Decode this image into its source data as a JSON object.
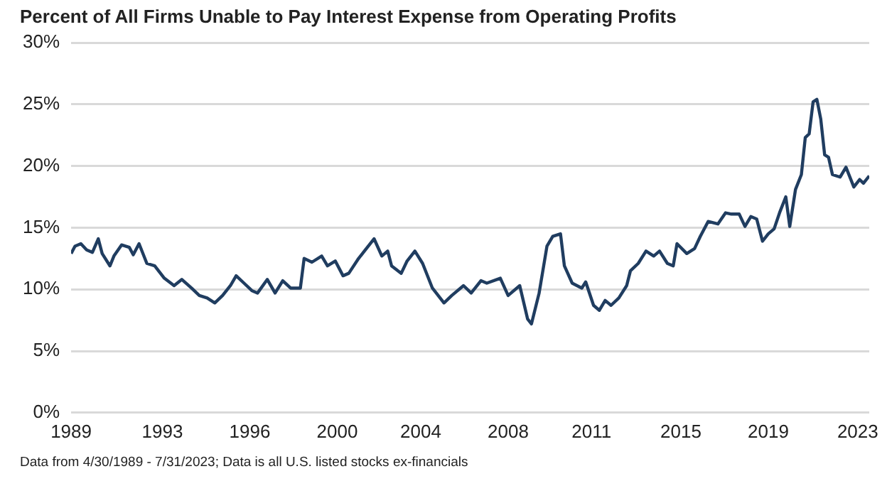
{
  "chart_data": {
    "type": "line",
    "title": "Percent of All Firms Unable to Pay Interest Expense from Operating Profits",
    "annotations": [
      "Data from 4/30/1989 - 7/31/2023; Data is all U.S. listed stocks ex-financials"
    ],
    "x": [
      "1989-04",
      "1989-06",
      "1989-09",
      "1989-12",
      "1990-03",
      "1990-06",
      "1990-08",
      "1990-12",
      "1991-02",
      "1991-06",
      "1991-10",
      "1991-12",
      "1992-03",
      "1992-07",
      "1992-11",
      "1993-04",
      "1993-09",
      "1994-01",
      "1994-06",
      "1994-10",
      "1995-02",
      "1995-06",
      "1995-10",
      "1996-02",
      "1996-05",
      "1996-09",
      "1997-01",
      "1997-04",
      "1997-09",
      "1998-01",
      "1998-05",
      "1998-09",
      "1999-02",
      "1999-04",
      "1999-08",
      "2000-01",
      "2000-04",
      "2000-08",
      "2000-12",
      "2001-03",
      "2001-08",
      "2001-12",
      "2002-04",
      "2002-08",
      "2002-11",
      "2003-01",
      "2003-06",
      "2003-09",
      "2004-01",
      "2004-05",
      "2004-10",
      "2005-04",
      "2005-08",
      "2006-02",
      "2006-06",
      "2006-11",
      "2007-02",
      "2007-09",
      "2008-01",
      "2008-07",
      "2008-11",
      "2009-01",
      "2009-05",
      "2009-09",
      "2009-12",
      "2010-04",
      "2010-06",
      "2010-10",
      "2011-03",
      "2011-05",
      "2011-09",
      "2011-12",
      "2012-03",
      "2012-06",
      "2012-10",
      "2013-02",
      "2013-04",
      "2013-08",
      "2013-12",
      "2014-04",
      "2014-07",
      "2014-11",
      "2015-02",
      "2015-04",
      "2015-09",
      "2016-01",
      "2016-04",
      "2016-08",
      "2017-01",
      "2017-05",
      "2017-08",
      "2017-12",
      "2018-03",
      "2018-06",
      "2018-09",
      "2018-12",
      "2019-03",
      "2019-06",
      "2019-09",
      "2019-12",
      "2020-02",
      "2020-05",
      "2020-08",
      "2020-10",
      "2020-12",
      "2021-02",
      "2021-04",
      "2021-06",
      "2021-08",
      "2021-10",
      "2021-12",
      "2022-04",
      "2022-07",
      "2022-11",
      "2023-02",
      "2023-04",
      "2023-07"
    ],
    "series": [
      {
        "color": "#203d60",
        "values": [
          12.9,
          13.5,
          13.7,
          13.2,
          13.0,
          14.1,
          12.9,
          11.9,
          12.7,
          13.6,
          13.4,
          12.8,
          13.7,
          12.1,
          11.9,
          10.9,
          10.3,
          10.8,
          10.1,
          9.5,
          9.3,
          8.9,
          9.5,
          10.3,
          11.1,
          10.5,
          9.9,
          9.7,
          10.8,
          9.7,
          10.7,
          10.1,
          10.1,
          12.5,
          12.2,
          12.7,
          11.9,
          12.3,
          11.1,
          11.3,
          12.5,
          13.3,
          14.1,
          12.7,
          13.1,
          11.9,
          11.3,
          12.3,
          13.1,
          12.1,
          10.1,
          8.9,
          9.5,
          10.3,
          9.7,
          10.7,
          10.5,
          10.9,
          9.5,
          10.3,
          7.6,
          7.2,
          9.7,
          13.5,
          14.3,
          14.5,
          11.9,
          10.5,
          10.1,
          10.6,
          8.7,
          8.3,
          9.1,
          8.7,
          9.3,
          10.3,
          11.5,
          12.1,
          13.1,
          12.7,
          13.1,
          12.1,
          11.9,
          13.7,
          12.9,
          13.3,
          14.3,
          15.5,
          15.3,
          16.2,
          16.1,
          16.1,
          15.1,
          15.9,
          15.7,
          13.9,
          14.5,
          14.9,
          16.3,
          17.5,
          15.1,
          18.1,
          19.3,
          22.3,
          22.6,
          25.2,
          25.4,
          23.8,
          20.9,
          20.7,
          19.3,
          19.1,
          19.9,
          18.3,
          18.9,
          18.6,
          19.2
        ]
      }
    ],
    "xlim": [
      "1989-04",
      "2023-07"
    ],
    "xticks": [
      {
        "value": "1989-04",
        "label": "1989"
      },
      {
        "value": "1993-03",
        "label": "1993"
      },
      {
        "value": "1996-12",
        "label": "1996"
      },
      {
        "value": "2000-09",
        "label": "2000"
      },
      {
        "value": "2004-04",
        "label": "2004"
      },
      {
        "value": "2008-01",
        "label": "2008"
      },
      {
        "value": "2011-08",
        "label": "2011"
      },
      {
        "value": "2015-06",
        "label": "2015"
      },
      {
        "value": "2019-03",
        "label": "2019"
      },
      {
        "value": "2023-01",
        "label": "2023"
      }
    ],
    "ylim": [
      0,
      30
    ],
    "yticks": [
      {
        "value": 0,
        "label": "0%"
      },
      {
        "value": 5,
        "label": "5%"
      },
      {
        "value": 10,
        "label": "10%"
      },
      {
        "value": 15,
        "label": "15%"
      },
      {
        "value": 20,
        "label": "20%"
      },
      {
        "value": 25,
        "label": "25%"
      },
      {
        "value": 30,
        "label": "30%"
      }
    ],
    "grid": "y",
    "line_style": "solid",
    "marker": "none"
  }
}
